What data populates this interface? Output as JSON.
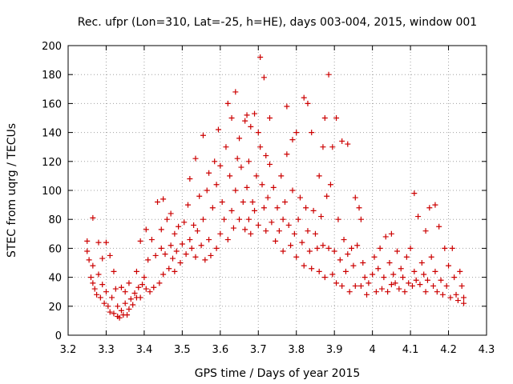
{
  "chart_data": {
    "type": "scatter",
    "title": "Rec. ufpr (Lon=310, Lat=-25, h=HE), days 003-004, 2015, window 001",
    "xlabel": "GPS time / Days of year 2015",
    "ylabel": "STEC from uqrg / TECUs",
    "xlim": [
      3.2,
      4.3
    ],
    "ylim": [
      0,
      200
    ],
    "xticks": [
      3.2,
      3.3,
      3.4,
      3.5,
      3.6,
      3.7,
      3.8,
      3.9,
      4.0,
      4.1,
      4.2,
      4.3
    ],
    "xtick_labels": [
      "3.2",
      "3.3",
      "3.4",
      "3.5",
      "3.6",
      "3.7",
      "3.8",
      "3.9",
      "4",
      "4.1",
      "4.2",
      "4.3"
    ],
    "yticks": [
      0,
      20,
      40,
      60,
      80,
      100,
      120,
      140,
      160,
      180,
      200
    ],
    "ytick_labels": [
      "0",
      "20",
      "40",
      "60",
      "80",
      "100",
      "120",
      "140",
      "160",
      "180",
      "200"
    ],
    "grid": true,
    "marker": "+",
    "marker_color": "#cc0000",
    "series": [
      {
        "name": "STEC",
        "points": [
          [
            3.25,
            65
          ],
          [
            3.25,
            58
          ],
          [
            3.255,
            52
          ],
          [
            3.26,
            40
          ],
          [
            3.265,
            36
          ],
          [
            3.265,
            48
          ],
          [
            3.265,
            81
          ],
          [
            3.27,
            32
          ],
          [
            3.275,
            28
          ],
          [
            3.28,
            64
          ],
          [
            3.28,
            42
          ],
          [
            3.285,
            26
          ],
          [
            3.29,
            35
          ],
          [
            3.29,
            53
          ],
          [
            3.295,
            22
          ],
          [
            3.3,
            64
          ],
          [
            3.3,
            30
          ],
          [
            3.305,
            20
          ],
          [
            3.31,
            16
          ],
          [
            3.31,
            55
          ],
          [
            3.315,
            26
          ],
          [
            3.32,
            44
          ],
          [
            3.32,
            15
          ],
          [
            3.325,
            32
          ],
          [
            3.33,
            13
          ],
          [
            3.33,
            20
          ],
          [
            3.335,
            12
          ],
          [
            3.34,
            17
          ],
          [
            3.34,
            33
          ],
          [
            3.345,
            14
          ],
          [
            3.35,
            22
          ],
          [
            3.35,
            30
          ],
          [
            3.355,
            14
          ],
          [
            3.36,
            18
          ],
          [
            3.36,
            36
          ],
          [
            3.365,
            25
          ],
          [
            3.37,
            21
          ],
          [
            3.375,
            29
          ],
          [
            3.38,
            44
          ],
          [
            3.38,
            26
          ],
          [
            3.385,
            33
          ],
          [
            3.39,
            65
          ],
          [
            3.39,
            26
          ],
          [
            3.395,
            35
          ],
          [
            3.4,
            40
          ],
          [
            3.405,
            73
          ],
          [
            3.405,
            32
          ],
          [
            3.41,
            52
          ],
          [
            3.415,
            30
          ],
          [
            3.42,
            66
          ],
          [
            3.425,
            33
          ],
          [
            3.43,
            55
          ],
          [
            3.435,
            92
          ],
          [
            3.44,
            36
          ],
          [
            3.445,
            60
          ],
          [
            3.445,
            73
          ],
          [
            3.45,
            94
          ],
          [
            3.45,
            42
          ],
          [
            3.455,
            56
          ],
          [
            3.46,
            80
          ],
          [
            3.465,
            46
          ],
          [
            3.47,
            62
          ],
          [
            3.47,
            84
          ],
          [
            3.475,
            53
          ],
          [
            3.48,
            70
          ],
          [
            3.48,
            44
          ],
          [
            3.485,
            58
          ],
          [
            3.49,
            75
          ],
          [
            3.495,
            50
          ],
          [
            3.5,
            63
          ],
          [
            3.505,
            78
          ],
          [
            3.51,
            56
          ],
          [
            3.515,
            90
          ],
          [
            3.52,
            66
          ],
          [
            3.52,
            108
          ],
          [
            3.525,
            60
          ],
          [
            3.53,
            76
          ],
          [
            3.535,
            122
          ],
          [
            3.535,
            54
          ],
          [
            3.54,
            72
          ],
          [
            3.545,
            96
          ],
          [
            3.55,
            62
          ],
          [
            3.555,
            138
          ],
          [
            3.555,
            80
          ],
          [
            3.56,
            52
          ],
          [
            3.565,
            100
          ],
          [
            3.57,
            66
          ],
          [
            3.57,
            112
          ],
          [
            3.575,
            55
          ],
          [
            3.58,
            88
          ],
          [
            3.585,
            120
          ],
          [
            3.59,
            60
          ],
          [
            3.59,
            104
          ],
          [
            3.595,
            142
          ],
          [
            3.6,
            70
          ],
          [
            3.6,
            117
          ],
          [
            3.605,
            92
          ],
          [
            3.61,
            80
          ],
          [
            3.615,
            130
          ],
          [
            3.62,
            66
          ],
          [
            3.62,
            160
          ],
          [
            3.625,
            110
          ],
          [
            3.63,
            150
          ],
          [
            3.63,
            86
          ],
          [
            3.635,
            74
          ],
          [
            3.64,
            168
          ],
          [
            3.64,
            100
          ],
          [
            3.645,
            122
          ],
          [
            3.65,
            136
          ],
          [
            3.65,
            80
          ],
          [
            3.655,
            116
          ],
          [
            3.66,
            92
          ],
          [
            3.665,
            148
          ],
          [
            3.665,
            73
          ],
          [
            3.67,
            152
          ],
          [
            3.67,
            102
          ],
          [
            3.675,
            120
          ],
          [
            3.675,
            80
          ],
          [
            3.68,
            144
          ],
          [
            3.68,
            70
          ],
          [
            3.685,
            92
          ],
          [
            3.69,
            153
          ],
          [
            3.69,
            86
          ],
          [
            3.695,
            110
          ],
          [
            3.7,
            140
          ],
          [
            3.7,
            76
          ],
          [
            3.705,
            192
          ],
          [
            3.705,
            130
          ],
          [
            3.71,
            104
          ],
          [
            3.715,
            88
          ],
          [
            3.715,
            178
          ],
          [
            3.72,
            124
          ],
          [
            3.72,
            72
          ],
          [
            3.725,
            95
          ],
          [
            3.73,
            150
          ],
          [
            3.73,
            118
          ],
          [
            3.735,
            78
          ],
          [
            3.74,
            102
          ],
          [
            3.745,
            65
          ],
          [
            3.75,
            88
          ],
          [
            3.755,
            72
          ],
          [
            3.76,
            110
          ],
          [
            3.765,
            80
          ],
          [
            3.765,
            58
          ],
          [
            3.77,
            92
          ],
          [
            3.775,
            158
          ],
          [
            3.775,
            125
          ],
          [
            3.78,
            76
          ],
          [
            3.785,
            62
          ],
          [
            3.79,
            135
          ],
          [
            3.79,
            100
          ],
          [
            3.795,
            70
          ],
          [
            3.8,
            140
          ],
          [
            3.8,
            54
          ],
          [
            3.805,
            80
          ],
          [
            3.81,
            95
          ],
          [
            3.815,
            64
          ],
          [
            3.82,
            164
          ],
          [
            3.82,
            48
          ],
          [
            3.825,
            88
          ],
          [
            3.83,
            160
          ],
          [
            3.83,
            72
          ],
          [
            3.835,
            58
          ],
          [
            3.84,
            140
          ],
          [
            3.84,
            46
          ],
          [
            3.845,
            86
          ],
          [
            3.85,
            70
          ],
          [
            3.855,
            60
          ],
          [
            3.86,
            110
          ],
          [
            3.86,
            44
          ],
          [
            3.865,
            82
          ],
          [
            3.87,
            130
          ],
          [
            3.87,
            62
          ],
          [
            3.875,
            150
          ],
          [
            3.875,
            40
          ],
          [
            3.88,
            96
          ],
          [
            3.885,
            180
          ],
          [
            3.885,
            60
          ],
          [
            3.89,
            104
          ],
          [
            3.895,
            130
          ],
          [
            3.895,
            42
          ],
          [
            3.9,
            58
          ],
          [
            3.905,
            150
          ],
          [
            3.905,
            36
          ],
          [
            3.91,
            80
          ],
          [
            3.915,
            52
          ],
          [
            3.92,
            134
          ],
          [
            3.92,
            34
          ],
          [
            3.925,
            66
          ],
          [
            3.93,
            44
          ],
          [
            3.935,
            132
          ],
          [
            3.935,
            56
          ],
          [
            3.94,
            30
          ],
          [
            3.945,
            60
          ],
          [
            3.95,
            48
          ],
          [
            3.955,
            95
          ],
          [
            3.955,
            34
          ],
          [
            3.96,
            62
          ],
          [
            3.965,
            88
          ],
          [
            3.97,
            80
          ],
          [
            3.97,
            34
          ],
          [
            3.975,
            50
          ],
          [
            3.98,
            40
          ],
          [
            3.985,
            28
          ],
          [
            3.99,
            36
          ],
          [
            4.0,
            42
          ],
          [
            4.005,
            54
          ],
          [
            4.01,
            30
          ],
          [
            4.015,
            46
          ],
          [
            4.02,
            60
          ],
          [
            4.025,
            32
          ],
          [
            4.03,
            40
          ],
          [
            4.035,
            68
          ],
          [
            4.04,
            30
          ],
          [
            4.045,
            50
          ],
          [
            4.05,
            70
          ],
          [
            4.05,
            35
          ],
          [
            4.055,
            42
          ],
          [
            4.06,
            36
          ],
          [
            4.065,
            58
          ],
          [
            4.07,
            32
          ],
          [
            4.075,
            46
          ],
          [
            4.08,
            40
          ],
          [
            4.085,
            30
          ],
          [
            4.09,
            54
          ],
          [
            4.095,
            36
          ],
          [
            4.1,
            60
          ],
          [
            4.105,
            34
          ],
          [
            4.11,
            98
          ],
          [
            4.11,
            44
          ],
          [
            4.115,
            38
          ],
          [
            4.12,
            82
          ],
          [
            4.125,
            35
          ],
          [
            4.13,
            50
          ],
          [
            4.135,
            42
          ],
          [
            4.14,
            72
          ],
          [
            4.14,
            30
          ],
          [
            4.145,
            38
          ],
          [
            4.15,
            88
          ],
          [
            4.155,
            54
          ],
          [
            4.16,
            34
          ],
          [
            4.165,
            90
          ],
          [
            4.165,
            44
          ],
          [
            4.17,
            30
          ],
          [
            4.175,
            75
          ],
          [
            4.18,
            38
          ],
          [
            4.185,
            28
          ],
          [
            4.19,
            60
          ],
          [
            4.195,
            34
          ],
          [
            4.2,
            48
          ],
          [
            4.205,
            26
          ],
          [
            4.21,
            60
          ],
          [
            4.215,
            40
          ],
          [
            4.22,
            28
          ],
          [
            4.225,
            24
          ],
          [
            4.23,
            44
          ],
          [
            4.235,
            34
          ],
          [
            4.24,
            26
          ],
          [
            4.24,
            22
          ]
        ]
      }
    ]
  }
}
